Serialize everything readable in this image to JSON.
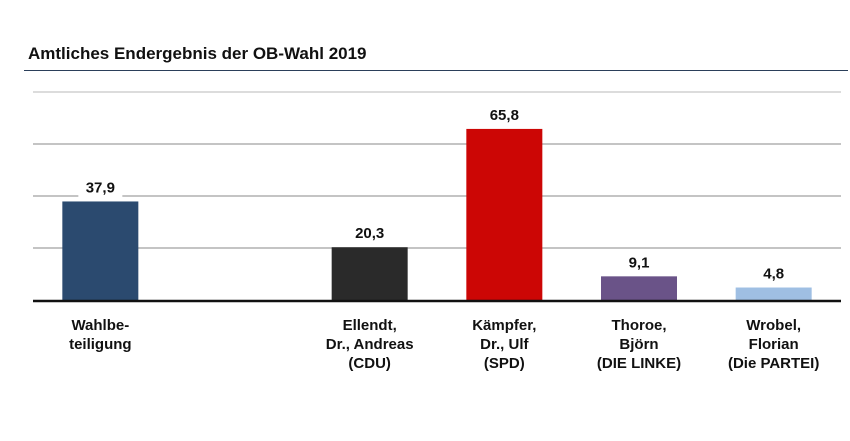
{
  "chart_data": {
    "type": "bar",
    "title": "Amtliches Endergebnis der OB-Wahl 2019",
    "xlabel": "",
    "ylabel": "",
    "ylim": [
      0,
      80
    ],
    "grid": true,
    "gridlines": [
      20,
      40,
      60,
      80
    ],
    "categories": [
      [
        "Wahlbe-",
        "teiligung"
      ],
      [],
      [
        "Ellendt,",
        "Dr., Andreas",
        "(CDU)"
      ],
      [
        "Kämpfer,",
        "Dr., Ulf",
        "(SPD)"
      ],
      [
        "Thoroe,",
        "Björn",
        "(DIE LINKE)"
      ],
      [
        "Wrobel,",
        "Florian",
        "(Die PARTEI)"
      ]
    ],
    "values": [
      37.9,
      null,
      20.3,
      65.8,
      9.1,
      4.8
    ],
    "value_labels": [
      "37,9",
      "",
      "20,3",
      "65,8",
      "9,1",
      "4,8"
    ],
    "colors": [
      "#2b4a6f",
      null,
      "#2a2a2a",
      "#cc0605",
      "#6a5388",
      "#9fbfe3"
    ]
  }
}
